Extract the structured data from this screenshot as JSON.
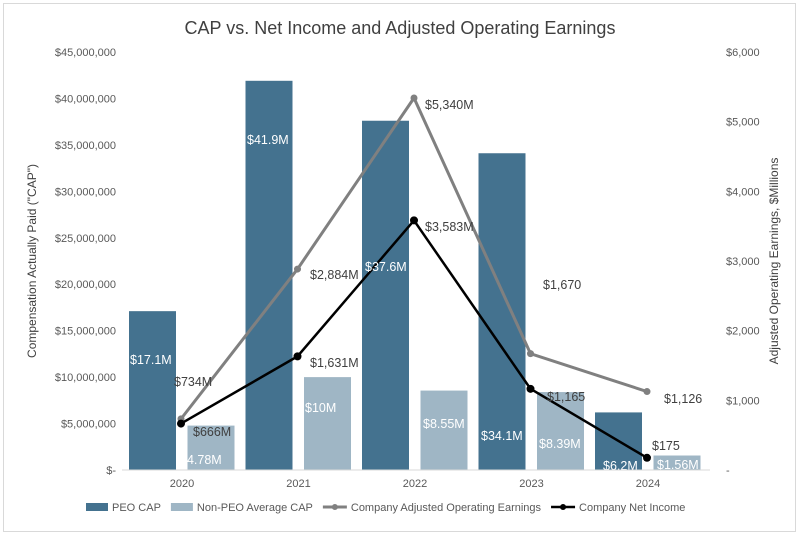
{
  "chart_data": {
    "type": "bar+line",
    "title": "CAP vs. Net Income and Adjusted Operating Earnings",
    "ylabel_left": "Compensation Actually Paid (\"CAP\")",
    "ylabel_right": "Adjusted Operating Earnings, $Millions",
    "categories": [
      "2020",
      "2021",
      "2022",
      "2023",
      "2024"
    ],
    "ylim_left": [
      0,
      45000000
    ],
    "yticks_left": [
      "$-",
      "$5,000,000",
      "$10,000,000",
      "$15,000,000",
      "$20,000,000",
      "$25,000,000",
      "$30,000,000",
      "$35,000,000",
      "$40,000,000",
      "$45,000,000"
    ],
    "ylim_right": [
      0,
      6000
    ],
    "yticks_right": [
      "-",
      "$1,000",
      "$2,000",
      "$3,000",
      "$4,000",
      "$5,000",
      "$6,000"
    ],
    "grid": false,
    "legend_position": "bottom",
    "series": [
      {
        "name": "PEO CAP",
        "type": "bar",
        "axis": "left",
        "color": "#44728f",
        "values": [
          17100000,
          41900000,
          37600000,
          34100000,
          6200000
        ],
        "labels": [
          "$17.1M",
          "$41.9M",
          "$37.6M",
          "$34.1M",
          "$6.2M"
        ]
      },
      {
        "name": "Non-PEO Average CAP",
        "type": "bar",
        "axis": "left",
        "color": "#9fb6c5",
        "values": [
          4780000,
          10000000,
          8550000,
          8390000,
          1560000
        ],
        "labels": [
          "$4.78M",
          "$10M",
          "$8.55M",
          "$8.39M",
          "$1.56M"
        ]
      },
      {
        "name": "Company Adjusted Operating Earnings",
        "type": "line",
        "axis": "right",
        "color": "#808080",
        "values": [
          734,
          2884,
          5340,
          1670,
          1126
        ],
        "labels": [
          "$734M",
          "$2,884M",
          "$5,340M",
          "$1,670",
          "$1,126"
        ]
      },
      {
        "name": "Company Net Income",
        "type": "line",
        "axis": "right",
        "color": "#000000",
        "values": [
          666,
          1631,
          3583,
          1165,
          175
        ],
        "labels": [
          "$666M",
          "$1,631M",
          "$3,583M",
          "$1,165",
          "$175"
        ]
      }
    ]
  }
}
